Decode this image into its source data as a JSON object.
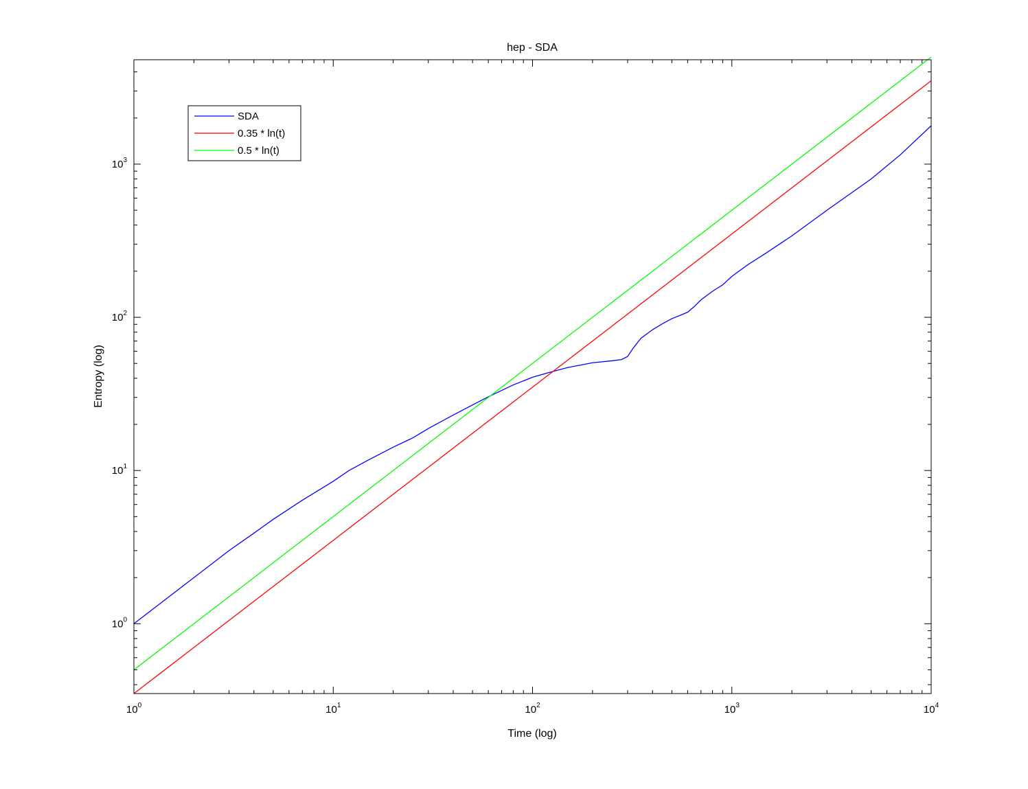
{
  "chart_data": {
    "type": "line",
    "title": "hep - SDA",
    "xlabel": "Time (log)",
    "ylabel": "Entropy (log)",
    "xscale": "log",
    "yscale": "log",
    "xlim": [
      1,
      10000
    ],
    "ylim": [
      0.35,
      4800
    ],
    "grid": false,
    "legend_position": "top-left",
    "x_tick_labels": [
      {
        "base": "10",
        "exp": "0",
        "value": 1
      },
      {
        "base": "10",
        "exp": "1",
        "value": 10
      },
      {
        "base": "10",
        "exp": "2",
        "value": 100
      },
      {
        "base": "10",
        "exp": "3",
        "value": 1000
      },
      {
        "base": "10",
        "exp": "4",
        "value": 10000
      }
    ],
    "y_tick_labels": [
      {
        "base": "10",
        "exp": "0",
        "value": 1
      },
      {
        "base": "10",
        "exp": "1",
        "value": 10
      },
      {
        "base": "10",
        "exp": "2",
        "value": 100
      },
      {
        "base": "10",
        "exp": "3",
        "value": 1000
      }
    ],
    "series": [
      {
        "name": "SDA",
        "color": "#0000ff",
        "x": [
          1,
          1.5,
          2,
          3,
          4,
          5,
          7,
          10,
          12,
          15,
          20,
          24,
          25,
          30,
          40,
          50,
          60,
          80,
          100,
          120,
          150,
          200,
          250,
          280,
          300,
          320,
          350,
          400,
          450,
          500,
          550,
          600,
          650,
          700,
          800,
          900,
          1000,
          1200,
          1500,
          2000,
          3000,
          5000,
          7000,
          10000
        ],
        "y": [
          1.0,
          1.5,
          2.0,
          3.0,
          3.9,
          4.8,
          6.4,
          8.5,
          10.0,
          11.7,
          14.2,
          15.9,
          16.3,
          18.8,
          23.0,
          26.8,
          30.3,
          36.2,
          40.6,
          43.5,
          47.0,
          50.5,
          52.0,
          53.0,
          55.5,
          63.0,
          73.0,
          83.0,
          91.0,
          98.0,
          103.0,
          108.0,
          118.0,
          130.0,
          148.0,
          163.0,
          185.0,
          220.0,
          265.0,
          340.0,
          500.0,
          800.0,
          1150.0,
          1780.0
        ]
      },
      {
        "name": "0.35 * ln(t)",
        "color": "#ff0000",
        "x": [
          1,
          10000
        ],
        "y": [
          0.35,
          3500
        ]
      },
      {
        "name": "0.5 * ln(t)",
        "color": "#00ff00",
        "x": [
          1,
          10000
        ],
        "y": [
          0.5,
          5000
        ]
      }
    ]
  }
}
